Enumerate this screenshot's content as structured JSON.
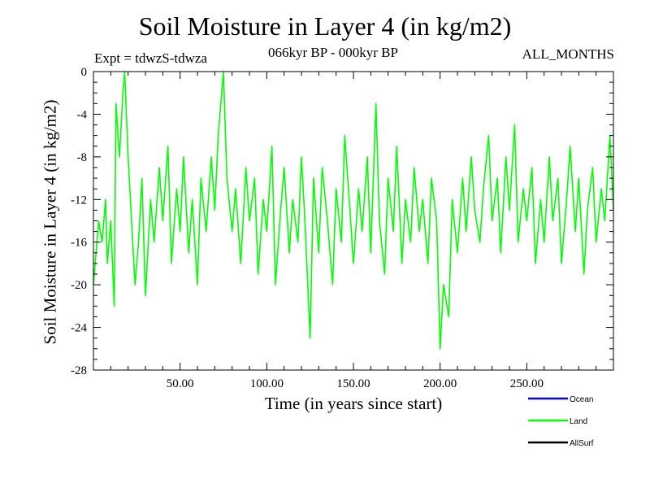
{
  "chart_data": {
    "type": "line",
    "title": "Soil Moisture in Layer 4 (in kg/m2)",
    "subtitle_left": "Expt = tdwzS-tdwza",
    "subtitle_center": "066kyr BP - 000kyr BP",
    "subtitle_right": "ALL_MONTHS",
    "xlabel": "Time (in years since start)",
    "ylabel": "Soil Moisture in Layer 4 (in kg/m2)",
    "xlim": [
      0,
      300
    ],
    "ylim": [
      -28,
      0
    ],
    "x_ticks": [
      50,
      100,
      150,
      200,
      250
    ],
    "x_tick_labels": [
      "50.00",
      "100.00",
      "150.00",
      "200.00",
      "250.00"
    ],
    "y_ticks": [
      0,
      -4,
      -8,
      -12,
      -16,
      -20,
      -24,
      -28
    ],
    "y_tick_labels": [
      "0",
      "-4",
      "-8",
      "-12",
      "-16",
      "-20",
      "-24",
      "-28"
    ],
    "legend": [
      {
        "name": "Ocean",
        "color": "#0000ff"
      },
      {
        "name": "Land",
        "color": "#00ff00"
      },
      {
        "name": "AllSurf",
        "color": "#000000"
      }
    ],
    "legend_position": "bottom-right",
    "series": [
      {
        "name": "Land",
        "color": "#00ff00",
        "x": [
          0,
          3,
          5,
          7,
          8,
          10,
          12,
          13,
          15,
          17,
          18,
          20,
          22,
          24,
          26,
          28,
          30,
          33,
          35,
          38,
          40,
          43,
          45,
          48,
          50,
          52,
          55,
          57,
          60,
          62,
          65,
          68,
          70,
          72,
          75,
          77,
          80,
          82,
          85,
          88,
          90,
          93,
          95,
          98,
          100,
          103,
          105,
          108,
          110,
          113,
          115,
          118,
          120,
          122,
          125,
          127,
          130,
          132,
          135,
          138,
          140,
          143,
          145,
          148,
          150,
          153,
          155,
          158,
          160,
          163,
          165,
          168,
          170,
          173,
          175,
          178,
          180,
          183,
          185,
          188,
          190,
          193,
          195,
          198,
          200,
          202,
          205,
          207,
          210,
          213,
          215,
          218,
          220,
          223,
          225,
          228,
          230,
          233,
          235,
          238,
          240,
          243,
          245,
          248,
          250,
          253,
          255,
          258,
          260,
          263,
          265,
          268,
          270,
          273,
          275,
          278,
          280,
          283,
          285,
          288,
          290,
          293,
          295,
          298,
          300
        ],
        "values": [
          -20,
          -14,
          -16,
          -12,
          -18,
          -14,
          -22,
          -3,
          -8,
          -2,
          0,
          -8,
          -14,
          -20,
          -16,
          -10,
          -21,
          -12,
          -16,
          -9,
          -14,
          -7,
          -18,
          -11,
          -15,
          -8,
          -17,
          -12,
          -20,
          -10,
          -15,
          -8,
          -13,
          -6,
          0,
          -10,
          -15,
          -11,
          -18,
          -9,
          -14,
          -10,
          -19,
          -12,
          -15,
          -7,
          -20,
          -13,
          -9,
          -17,
          -12,
          -16,
          -8,
          -14,
          -25,
          -10,
          -17,
          -9,
          -14,
          -20,
          -11,
          -16,
          -6,
          -13,
          -18,
          -11,
          -15,
          -8,
          -17,
          -3,
          -14,
          -19,
          -10,
          -15,
          -7,
          -18,
          -12,
          -16,
          -9,
          -15,
          -12,
          -18,
          -10,
          -14,
          -26,
          -20,
          -23,
          -12,
          -17,
          -10,
          -15,
          -8,
          -13,
          -16,
          -11,
          -6,
          -14,
          -10,
          -17,
          -8,
          -13,
          -5,
          -16,
          -11,
          -14,
          -9,
          -18,
          -12,
          -16,
          -8,
          -14,
          -10,
          -18,
          -12,
          -7,
          -15,
          -10,
          -19,
          -13,
          -9,
          -16,
          -11,
          -14,
          -6,
          -13
        ]
      }
    ]
  }
}
